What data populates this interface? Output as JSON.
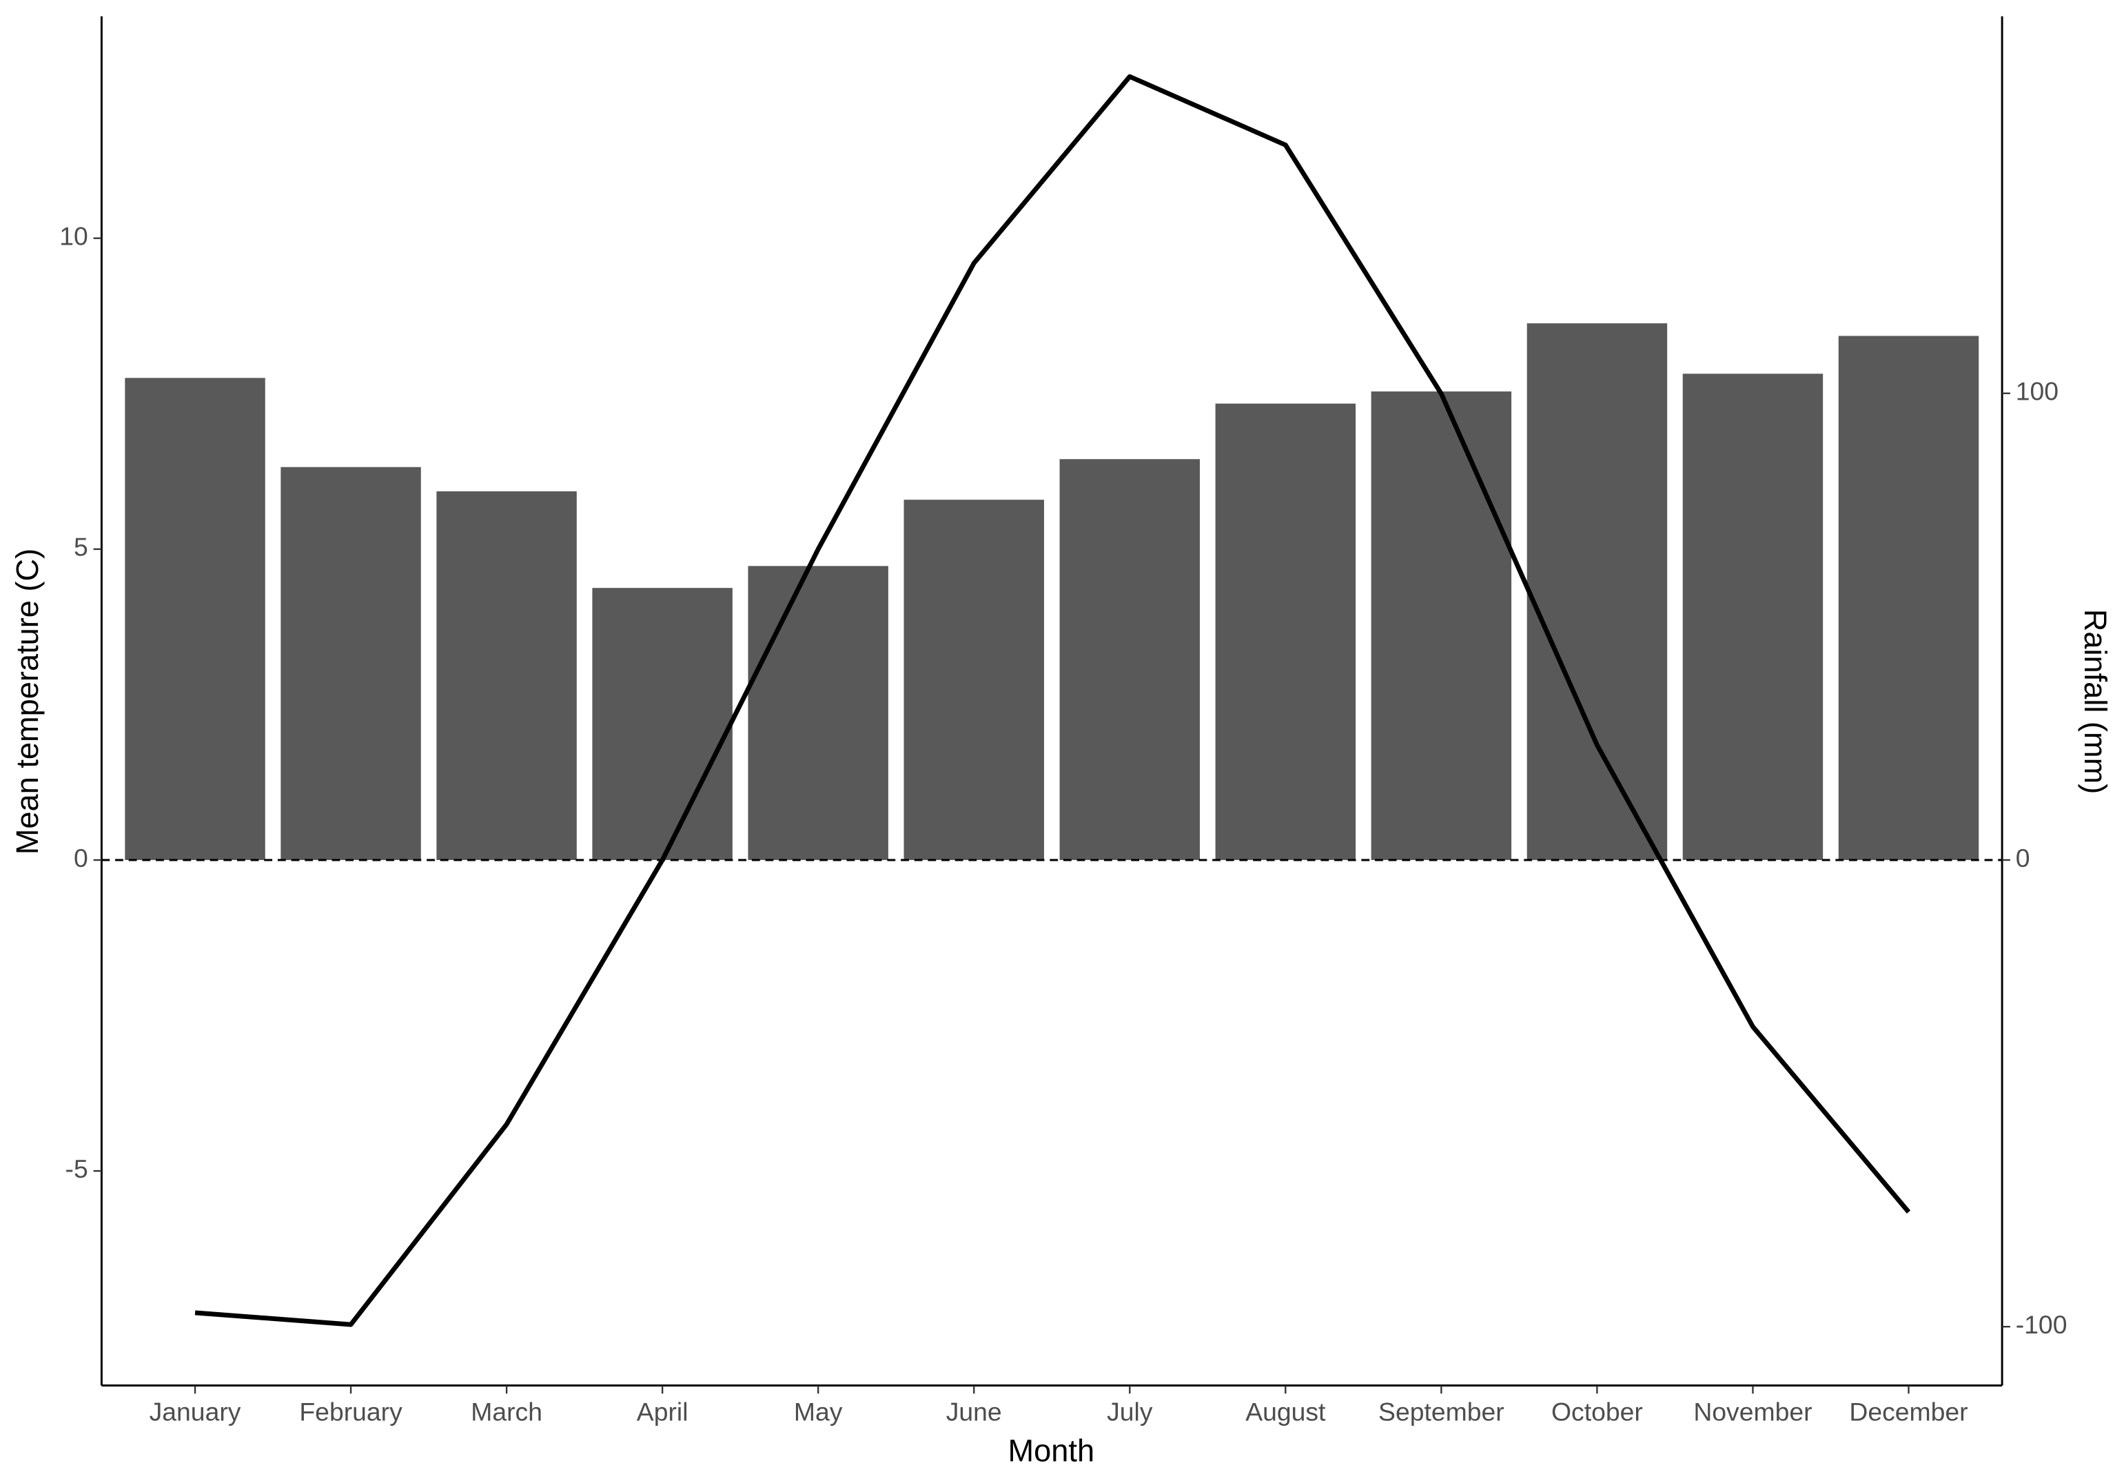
{
  "chart_data": {
    "type": "combo",
    "x_label": "Month",
    "y_label": "Mean temperature (C)",
    "y2_label": "Rainfall (mm)",
    "categories": [
      "January",
      "February",
      "March",
      "April",
      "May",
      "June",
      "July",
      "August",
      "September",
      "October",
      "November",
      "December"
    ],
    "series": [
      {
        "type": "bar",
        "axis": "y2",
        "color": "#595959",
        "values": [
          103.3,
          84.2,
          79.0,
          58.3,
          63.0,
          77.2,
          85.9,
          97.8,
          100.4,
          115.0,
          104.2,
          112.3
        ]
      },
      {
        "type": "line",
        "color": "#000000",
        "values": [
          -7.28,
          -7.47,
          -4.25,
          0.0,
          5.0,
          9.6,
          12.6,
          11.5,
          7.5,
          1.85,
          -2.68,
          -5.66
        ]
      }
    ],
    "ylim": [
      -8.45,
      13.57
    ],
    "yticks": [
      -5,
      0,
      5,
      10
    ],
    "y2lim": [
      -112.6,
      180.8
    ],
    "y2ticks": [
      -100,
      0,
      100
    ],
    "zero_line": 0,
    "grid": false
  }
}
